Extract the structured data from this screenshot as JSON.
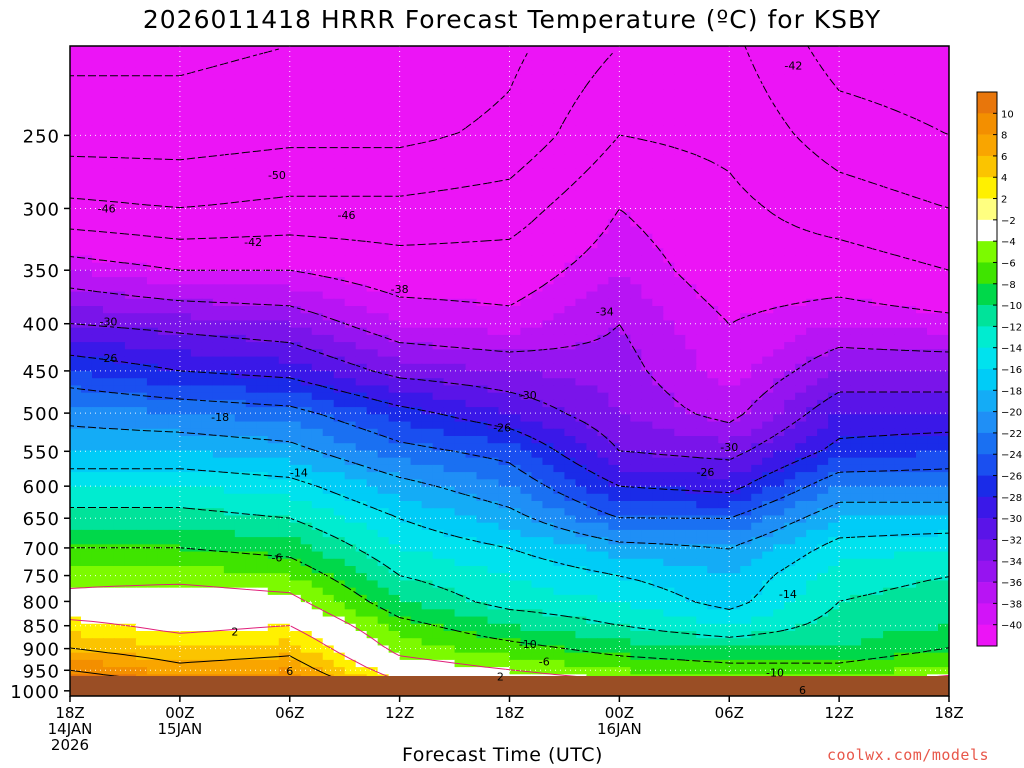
{
  "title": "2026011418 HRRR Forecast Temperature (ºC) for KSBY",
  "credit": "coolwx.com/models",
  "chart_data": {
    "type": "heatmap",
    "title": "2026011418 HRRR Forecast Temperature (ºC) for KSBY",
    "xlabel": "Forecast Time (UTC)",
    "ylabel": "",
    "x_unit": "forecast hour from 2026-01-14 18Z",
    "xlim": [
      0,
      48
    ],
    "ylim": [
      1013,
      200
    ],
    "y_scale": "log",
    "grid": true,
    "x_ticks": [
      {
        "hour": 0,
        "lines": [
          "18Z",
          "14JAN",
          "2026"
        ]
      },
      {
        "hour": 6,
        "lines": [
          "00Z",
          "15JAN"
        ]
      },
      {
        "hour": 12,
        "lines": [
          "06Z"
        ]
      },
      {
        "hour": 18,
        "lines": [
          "12Z"
        ]
      },
      {
        "hour": 24,
        "lines": [
          "18Z"
        ]
      },
      {
        "hour": 30,
        "lines": [
          "00Z",
          "16JAN"
        ]
      },
      {
        "hour": 36,
        "lines": [
          "06Z"
        ]
      },
      {
        "hour": 42,
        "lines": [
          "12Z"
        ]
      },
      {
        "hour": 48,
        "lines": [
          "18Z"
        ]
      }
    ],
    "y_ticks": [
      250,
      300,
      350,
      400,
      450,
      500,
      550,
      600,
      650,
      700,
      750,
      800,
      850,
      900,
      950,
      1000
    ],
    "colorbar": {
      "labels": [
        "10",
        "8",
        "6",
        "4",
        "2",
        "−2",
        "−4",
        "−6",
        "−8",
        "−10",
        "−12",
        "−14",
        "−16",
        "−18",
        "−20",
        "−22",
        "−24",
        "−26",
        "−28",
        "−30",
        "−32",
        "−34",
        "−36",
        "−38",
        "−40"
      ],
      "colors": [
        "#e8760b",
        "#f38f00",
        "#f9a500",
        "#fbc400",
        "#fff000",
        "#ffff80",
        "#ffffff",
        "#7cfa00",
        "#3fe400",
        "#00d84a",
        "#00e39a",
        "#00ecd0",
        "#00e2ee",
        "#00ccf7",
        "#14acf6",
        "#1f8ff6",
        "#1a70f2",
        "#1a4ff0",
        "#1a2be8",
        "#3a18e8",
        "#5a14e8",
        "#7a14ea",
        "#9614f0",
        "#b814f4",
        "#d214f8",
        "#ec14f6"
      ]
    },
    "profile_levels_hpa": [
      1000,
      950,
      900,
      850,
      800,
      750,
      700,
      650,
      600,
      550,
      500,
      450,
      400,
      350,
      300,
      250,
      200
    ],
    "profiles": [
      {
        "hour": 0,
        "temps": [
          14,
          10,
          6,
          3,
          -1,
          -3,
          -6,
          -9,
          -12,
          -16,
          -19,
          -24,
          -30,
          -36,
          -45,
          -52,
          -55
        ]
      },
      {
        "hour": 6,
        "temps": [
          12,
          7,
          4,
          1,
          0,
          -3,
          -6,
          -9,
          -12,
          -16,
          -20,
          -26,
          -31,
          -38,
          -46,
          -52,
          -55
        ]
      },
      {
        "hour": 12,
        "temps": [
          11,
          8,
          5,
          2,
          -1,
          -4,
          -7,
          -10,
          -13,
          -17,
          -21,
          -27,
          -32,
          -38,
          -45,
          -51,
          -54
        ]
      },
      {
        "hour": 18,
        "temps": [
          4,
          0,
          -3,
          -5,
          -8,
          -10,
          -12,
          -14,
          -17,
          -21,
          -25,
          -31,
          -36,
          -40,
          -45,
          -51,
          -54
        ]
      },
      {
        "hour": 24,
        "temps": [
          2,
          -2,
          -5,
          -8,
          -11,
          -12,
          -14,
          -17,
          -20,
          -23,
          -28,
          -32,
          -37,
          -40,
          -44,
          -49,
          -51
        ]
      },
      {
        "hour": 30,
        "temps": [
          0,
          -4,
          -7,
          -10,
          -12,
          -14,
          -17,
          -22,
          -26,
          -30,
          -32,
          -33,
          -34,
          -36,
          -38,
          -42,
          -46
        ]
      },
      {
        "hour": 36,
        "temps": [
          -1,
          -5,
          -8,
          -12,
          -15,
          -16,
          -18,
          -22,
          -27,
          -31,
          -35,
          -37,
          -38,
          -40,
          -41,
          -43,
          -45
        ]
      },
      {
        "hour": 42,
        "temps": [
          -1,
          -5,
          -8,
          -9,
          -10,
          -11,
          -13,
          -16,
          -20,
          -25,
          -28,
          -32,
          -36,
          -40,
          -44,
          -48,
          -52
        ]
      },
      {
        "hour": 48,
        "temps": [
          1,
          -3,
          -6,
          -8,
          -9,
          -10,
          -12,
          -16,
          -20,
          -24,
          -28,
          -32,
          -37,
          -42,
          -46,
          -50,
          -53
        ]
      }
    ],
    "annotations": [
      {
        "text": "-42",
        "hour": 39.5,
        "p": 210
      },
      {
        "text": "-50",
        "hour": 11.3,
        "p": 276
      },
      {
        "text": "-46",
        "hour": 2.0,
        "p": 300
      },
      {
        "text": "-46",
        "hour": 15.1,
        "p": 305
      },
      {
        "text": "-42",
        "hour": 10.0,
        "p": 326
      },
      {
        "text": "-38",
        "hour": 18.0,
        "p": 367
      },
      {
        "text": "-34",
        "hour": 29.2,
        "p": 388
      },
      {
        "text": "-30",
        "hour": 2.1,
        "p": 398
      },
      {
        "text": "-26",
        "hour": 2.1,
        "p": 436
      },
      {
        "text": "-30",
        "hour": 25.0,
        "p": 478
      },
      {
        "text": "-18",
        "hour": 8.2,
        "p": 505
      },
      {
        "text": "-26",
        "hour": 23.6,
        "p": 518
      },
      {
        "text": "-30",
        "hour": 36.0,
        "p": 544
      },
      {
        "text": "-26",
        "hour": 34.7,
        "p": 579
      },
      {
        "text": "-14",
        "hour": 12.5,
        "p": 580
      },
      {
        "text": "-6",
        "hour": 11.3,
        "p": 717
      },
      {
        "text": "-14",
        "hour": 39.2,
        "p": 785
      },
      {
        "text": "2",
        "hour": 9.0,
        "p": 862
      },
      {
        "text": "-10",
        "hour": 25.0,
        "p": 890
      },
      {
        "text": "-6",
        "hour": 25.9,
        "p": 930
      },
      {
        "text": "6",
        "hour": 12.0,
        "p": 952
      },
      {
        "text": "-10",
        "hour": 38.5,
        "p": 955
      },
      {
        "text": "2",
        "hour": 23.5,
        "p": 965
      },
      {
        "text": "6",
        "hour": 40.0,
        "p": 998
      }
    ]
  }
}
